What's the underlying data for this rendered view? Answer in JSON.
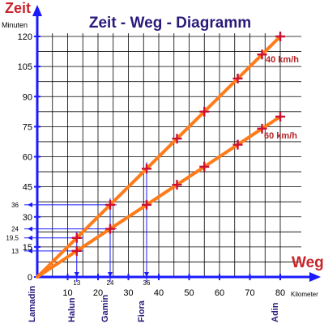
{
  "chart_data": {
    "type": "line",
    "title": "Zeit - Weg - Diagramm",
    "ylabel": "Zeit",
    "ylabel_unit": "Minuten",
    "xlabel": "Weg",
    "xlabel_unit": "Kilometer",
    "xlim": [
      0,
      80
    ],
    "ylim": [
      0,
      120
    ],
    "x_ticks": [
      10,
      20,
      30,
      40,
      50,
      60,
      70,
      80
    ],
    "y_ticks": [
      0,
      15,
      30,
      45,
      60,
      75,
      90,
      105,
      120
    ],
    "grid": true,
    "x_minor_step": 5,
    "y_minor_step": 7.5,
    "series": [
      {
        "name": "40 km/h",
        "points": [
          [
            13,
            19.5
          ],
          [
            24,
            36
          ],
          [
            36,
            54
          ],
          [
            46,
            69
          ],
          [
            55,
            82.5
          ],
          [
            66,
            99
          ],
          [
            74,
            111
          ],
          [
            80,
            120
          ]
        ]
      },
      {
        "name": "60 km/h",
        "points": [
          [
            13,
            13
          ],
          [
            24,
            24
          ],
          [
            36,
            36
          ],
          [
            46,
            46
          ],
          [
            55,
            55
          ],
          [
            66,
            66
          ],
          [
            74,
            74
          ],
          [
            80,
            80
          ]
        ]
      }
    ],
    "places": [
      {
        "name": "Lamadin",
        "km": 0
      },
      {
        "name": "Halun",
        "km": 13
      },
      {
        "name": "Gamin",
        "km": 24
      },
      {
        "name": "Fiora",
        "km": 36
      },
      {
        "name": "Adin",
        "km": 80
      }
    ],
    "vertical_markers": [
      {
        "x_label": "13",
        "x": 13,
        "y": 19.5
      },
      {
        "x_label": "24",
        "x": 24,
        "y": 36
      },
      {
        "x_label": "36",
        "x": 36,
        "y": 54
      }
    ],
    "horizontal_markers": [
      {
        "y_label": "36",
        "y": 36,
        "x": 24
      },
      {
        "y_label": "24",
        "y": 24,
        "x": 24
      },
      {
        "y_label": "19,5",
        "y": 19.5,
        "x": 13
      },
      {
        "y_label": "13",
        "y": 13,
        "x": 13
      }
    ]
  },
  "colors": {
    "axis": "#1a1aff",
    "grid": "#000000",
    "series": "#ff7b1a",
    "marker": "#cc1133",
    "title": "#2a1a7a",
    "axis_title": "#c8252b",
    "series_label": "#b52225",
    "helper": "#1a1aff"
  }
}
